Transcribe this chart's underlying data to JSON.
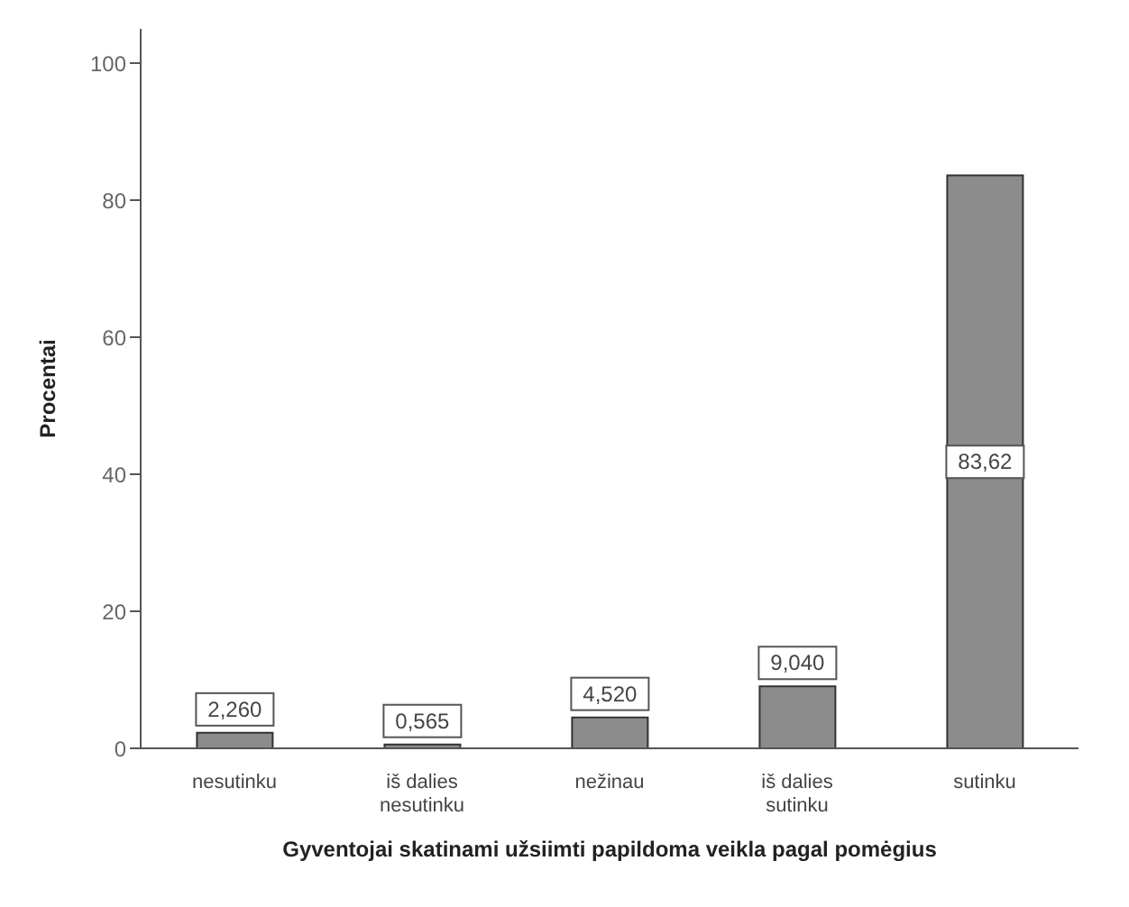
{
  "chart_data": {
    "type": "bar",
    "xlabel": "Gyventojai skatinami užsiimti papildoma veikla pagal pomėgius",
    "ylabel": "Procentai",
    "categories": [
      "nesutinku",
      "iš dalies nesutinku",
      "nežinau",
      "iš dalies sutinku",
      "sutinku"
    ],
    "values": [
      2.26,
      0.565,
      4.52,
      9.04,
      83.62
    ],
    "value_labels": [
      "2,260",
      "0,565",
      "4,520",
      "9,040",
      "83,62"
    ],
    "color": "#8c8c8c",
    "ylim": [
      0,
      105
    ],
    "yticks": [
      0,
      20,
      40,
      60,
      80,
      100
    ]
  }
}
